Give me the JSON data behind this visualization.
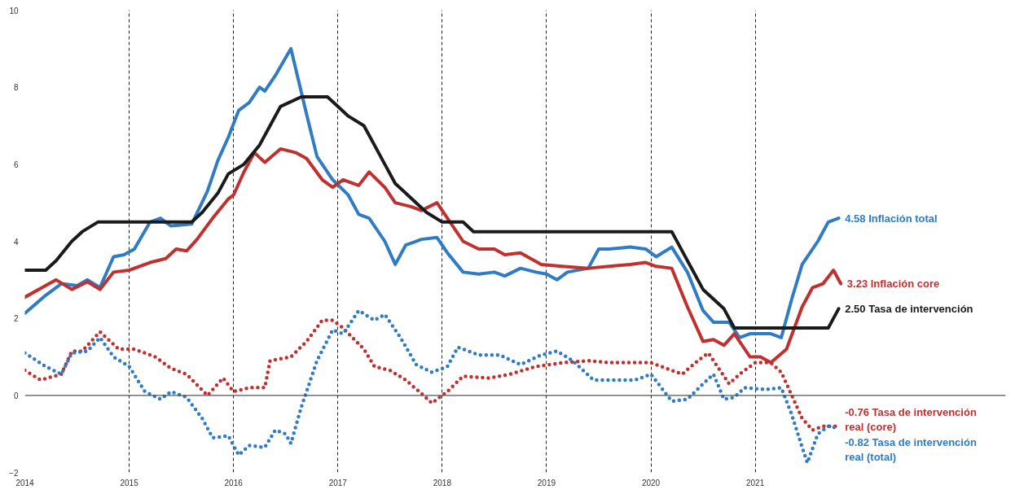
{
  "chart_data": {
    "type": "line",
    "xlim": [
      2014,
      2023.4
    ],
    "ylim": [
      -2,
      10
    ],
    "xticks": [
      2014,
      2015,
      2016,
      2017,
      2018,
      2019,
      2020,
      2021
    ],
    "yticks": [
      -2,
      0,
      2,
      4,
      6,
      8,
      10
    ],
    "grid": "x",
    "ref_lines": [
      {
        "axis": "y",
        "value": 0,
        "color": "#555555"
      }
    ],
    "series": [
      {
        "name": "4.58 Inflación total",
        "color": "#2f7bc4",
        "line_style": "solid",
        "x": [
          2014.0,
          2014.2,
          2014.35,
          2014.5,
          2014.6,
          2014.72,
          2014.85,
          2014.95,
          2015.05,
          2015.2,
          2015.3,
          2015.4,
          2015.6,
          2015.75,
          2015.85,
          2015.95,
          2016.05,
          2016.15,
          2016.25,
          2016.3,
          2016.4,
          2016.55,
          2016.7,
          2016.8,
          2016.95,
          2017.1,
          2017.2,
          2017.3,
          2017.45,
          2017.55,
          2017.65,
          2017.8,
          2017.95,
          2018.05,
          2018.2,
          2018.35,
          2018.5,
          2018.6,
          2018.75,
          2018.9,
          2019.0,
          2019.1,
          2019.2,
          2019.4,
          2019.5,
          2019.6,
          2019.8,
          2019.95,
          2020.05,
          2020.2,
          2020.35,
          2020.5,
          2020.6,
          2020.75,
          2020.85,
          2020.95,
          2021.15,
          2021.25,
          2021.35,
          2021.45,
          2021.6,
          2021.7,
          2021.8
        ],
        "values": [
          2.13,
          2.6,
          2.9,
          2.85,
          3.0,
          2.8,
          3.6,
          3.65,
          3.8,
          4.5,
          4.6,
          4.4,
          4.45,
          5.3,
          6.1,
          6.7,
          7.4,
          7.6,
          8.0,
          7.9,
          8.3,
          9.0,
          7.3,
          6.2,
          5.6,
          5.2,
          4.7,
          4.6,
          4.0,
          3.4,
          3.9,
          4.05,
          4.1,
          3.7,
          3.2,
          3.15,
          3.2,
          3.1,
          3.3,
          3.2,
          3.15,
          3.0,
          3.2,
          3.3,
          3.8,
          3.8,
          3.85,
          3.8,
          3.6,
          3.85,
          3.2,
          2.2,
          1.9,
          1.9,
          1.5,
          1.6,
          1.6,
          1.5,
          2.5,
          3.4,
          4.0,
          4.5,
          4.6
        ]
      },
      {
        "name": "3.23 Inflación core",
        "color": "#c0302f",
        "line_style": "solid",
        "x": [
          2014.0,
          2014.3,
          2014.45,
          2014.6,
          2014.72,
          2014.85,
          2015.0,
          2015.2,
          2015.35,
          2015.45,
          2015.55,
          2015.65,
          2015.8,
          2015.95,
          2016.0,
          2016.1,
          2016.2,
          2016.3,
          2016.45,
          2016.6,
          2016.7,
          2016.85,
          2016.95,
          2017.05,
          2017.2,
          2017.3,
          2017.45,
          2017.55,
          2017.7,
          2017.8,
          2017.95,
          2018.05,
          2018.2,
          2018.35,
          2018.5,
          2018.6,
          2018.75,
          2018.95,
          2019.15,
          2019.4,
          2019.6,
          2019.8,
          2019.95,
          2020.05,
          2020.2,
          2020.35,
          2020.5,
          2020.6,
          2020.7,
          2020.8,
          2020.95,
          2021.05,
          2021.15,
          2021.3,
          2021.45,
          2021.55,
          2021.65,
          2021.75,
          2021.82
        ],
        "values": [
          2.55,
          3.0,
          2.75,
          2.95,
          2.75,
          3.2,
          3.25,
          3.45,
          3.55,
          3.8,
          3.75,
          4.05,
          4.6,
          5.1,
          5.2,
          5.8,
          6.3,
          6.05,
          6.4,
          6.3,
          6.15,
          5.6,
          5.4,
          5.6,
          5.45,
          5.8,
          5.4,
          5.0,
          4.9,
          4.8,
          5.0,
          4.6,
          4.0,
          3.8,
          3.8,
          3.65,
          3.7,
          3.4,
          3.35,
          3.3,
          3.35,
          3.4,
          3.45,
          3.35,
          3.3,
          2.3,
          1.4,
          1.45,
          1.3,
          1.6,
          1.0,
          1.0,
          0.85,
          1.2,
          2.3,
          2.8,
          2.9,
          3.25,
          2.9
        ]
      },
      {
        "name": "2.50 Tasa de intervención",
        "color": "#1a1a1a",
        "line_style": "solid",
        "x": [
          2014.0,
          2014.2,
          2014.3,
          2014.45,
          2014.55,
          2014.7,
          2015.6,
          2015.7,
          2015.85,
          2015.95,
          2016.1,
          2016.25,
          2016.35,
          2016.45,
          2016.65,
          2016.9,
          2017.0,
          2017.1,
          2017.25,
          2017.35,
          2017.45,
          2017.55,
          2017.65,
          2017.75,
          2017.85,
          2018.0,
          2018.2,
          2018.3,
          2020.2,
          2020.3,
          2020.4,
          2020.5,
          2020.6,
          2020.7,
          2020.8,
          2021.7,
          2021.75,
          2021.8
        ],
        "values": [
          3.25,
          3.25,
          3.5,
          4.0,
          4.25,
          4.5,
          4.5,
          4.75,
          5.25,
          5.75,
          6.0,
          6.5,
          7.0,
          7.5,
          7.75,
          7.75,
          7.5,
          7.25,
          7.0,
          6.5,
          6.0,
          5.5,
          5.25,
          5.0,
          4.75,
          4.5,
          4.5,
          4.25,
          4.25,
          3.75,
          3.25,
          2.75,
          2.5,
          2.25,
          1.75,
          1.75,
          2.0,
          2.25
        ]
      },
      {
        "name": "-0.76 Tasa de intervención\nreal (core)",
        "color": "#c0302f",
        "line_style": "dotted",
        "x": [
          2014.0,
          2014.15,
          2014.35,
          2014.45,
          2014.55,
          2014.72,
          2014.9,
          2015.05,
          2015.25,
          2015.4,
          2015.55,
          2015.75,
          2015.9,
          2016.0,
          2016.15,
          2016.3,
          2016.35,
          2016.55,
          2016.7,
          2016.85,
          2016.95,
          2017.05,
          2017.25,
          2017.35,
          2017.5,
          2017.65,
          2017.8,
          2017.9,
          2018.05,
          2018.2,
          2018.45,
          2018.65,
          2018.9,
          2019.15,
          2019.4,
          2019.6,
          2019.8,
          2020.0,
          2020.2,
          2020.3,
          2020.45,
          2020.55,
          2020.65,
          2020.75,
          2020.85,
          2021.0,
          2021.15,
          2021.25,
          2021.35,
          2021.45,
          2021.55,
          2021.65,
          2021.8
        ],
        "values": [
          0.65,
          0.4,
          0.55,
          1.15,
          1.15,
          1.65,
          1.2,
          1.2,
          1.0,
          0.7,
          0.55,
          0.0,
          0.45,
          0.1,
          0.2,
          0.2,
          0.9,
          1.0,
          1.4,
          1.95,
          1.95,
          1.75,
          1.2,
          0.75,
          0.65,
          0.4,
          0.05,
          -0.2,
          0.1,
          0.5,
          0.45,
          0.55,
          0.75,
          0.85,
          0.9,
          0.85,
          0.85,
          0.85,
          0.65,
          0.55,
          0.9,
          1.1,
          0.7,
          0.3,
          0.55,
          0.85,
          0.85,
          0.6,
          0.0,
          -0.6,
          -0.9,
          -0.8,
          -0.8
        ]
      },
      {
        "name": "-0.82 Tasa de intervención\nreal (total)",
        "color": "#2f7bc4",
        "line_style": "dotted",
        "x": [
          2014.0,
          2014.2,
          2014.35,
          2014.45,
          2014.6,
          2014.72,
          2014.85,
          2015.0,
          2015.15,
          2015.3,
          2015.4,
          2015.55,
          2015.7,
          2015.8,
          2015.95,
          2016.05,
          2016.15,
          2016.3,
          2016.4,
          2016.5,
          2016.55,
          2016.65,
          2016.8,
          2016.95,
          2017.05,
          2017.2,
          2017.35,
          2017.45,
          2017.6,
          2017.75,
          2017.9,
          2018.05,
          2018.15,
          2018.35,
          2018.55,
          2018.75,
          2018.95,
          2019.1,
          2019.25,
          2019.45,
          2019.65,
          2019.85,
          2020.0,
          2020.1,
          2020.2,
          2020.35,
          2020.5,
          2020.6,
          2020.7,
          2020.8,
          2020.9,
          2021.1,
          2021.25,
          2021.35,
          2021.45,
          2021.5,
          2021.6,
          2021.7,
          2021.8
        ],
        "values": [
          1.1,
          0.75,
          0.55,
          1.1,
          1.15,
          1.5,
          1.0,
          0.75,
          0.1,
          -0.1,
          0.1,
          -0.05,
          -0.6,
          -1.1,
          -1.05,
          -1.55,
          -1.3,
          -1.35,
          -0.9,
          -1.0,
          -1.25,
          -0.3,
          0.9,
          1.7,
          1.6,
          2.2,
          1.95,
          2.1,
          1.5,
          0.8,
          0.6,
          0.75,
          1.25,
          1.05,
          1.05,
          0.8,
          1.05,
          1.15,
          0.9,
          0.4,
          0.4,
          0.4,
          0.55,
          0.2,
          -0.15,
          -0.1,
          0.3,
          0.55,
          -0.1,
          -0.05,
          0.2,
          0.15,
          0.2,
          -0.5,
          -1.35,
          -1.75,
          -1.0,
          -0.8,
          -0.85
        ]
      }
    ]
  }
}
